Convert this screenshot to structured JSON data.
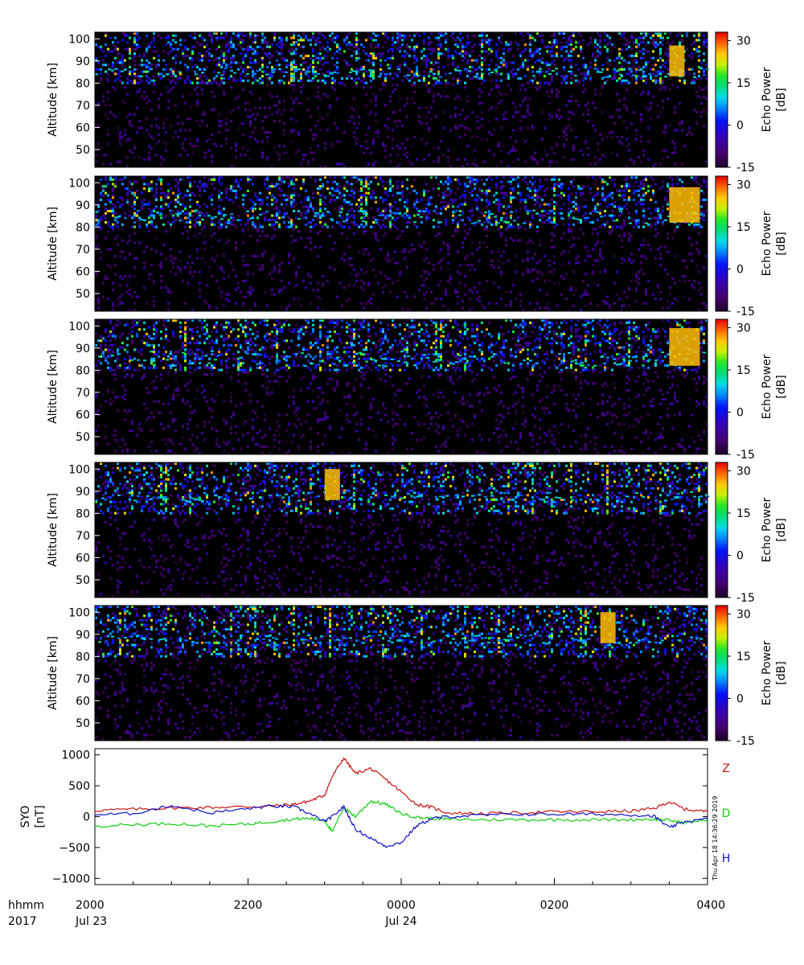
{
  "chart_data": [
    {
      "type": "heatmap",
      "panel": 1,
      "ylabel": "Altitude [km]",
      "ylim": [
        42,
        103
      ],
      "yticks": [
        "50",
        "60",
        "70",
        "80",
        "90",
        "100"
      ],
      "colorbar": {
        "label_line1": "Echo Power",
        "label_line2": "[dB]",
        "range": [
          -15,
          33
        ],
        "ticks": [
          "30",
          "15",
          "0",
          "-15"
        ]
      },
      "hours_span": [
        20,
        28
      ],
      "echo_layer_km": [
        83,
        87
      ],
      "strong_echo_hours": [
        27.5,
        27.7
      ]
    },
    {
      "type": "heatmap",
      "panel": 2,
      "ylabel": "Altitude [km]",
      "ylim": [
        42,
        103
      ],
      "yticks": [
        "50",
        "60",
        "70",
        "80",
        "90",
        "100"
      ],
      "colorbar": {
        "label_line1": "Echo Power",
        "label_line2": "[dB]",
        "range": [
          -15,
          33
        ],
        "ticks": [
          "30",
          "15",
          "0",
          "-15"
        ]
      },
      "hours_span": [
        20,
        28
      ],
      "echo_layer_km": [
        82,
        88
      ],
      "strong_echo_hours": [
        27.5,
        27.9
      ]
    },
    {
      "type": "heatmap",
      "panel": 3,
      "ylabel": "Altitude [km]",
      "ylim": [
        42,
        103
      ],
      "yticks": [
        "50",
        "60",
        "70",
        "80",
        "90",
        "100"
      ],
      "colorbar": {
        "label_line1": "Echo Power",
        "label_line2": "[dB]",
        "range": [
          -15,
          33
        ],
        "ticks": [
          "30",
          "15",
          "0",
          "-15"
        ]
      },
      "hours_span": [
        20,
        28
      ],
      "echo_layer_km": [
        82,
        89
      ],
      "strong_echo_hours": [
        27.5,
        27.9
      ]
    },
    {
      "type": "heatmap",
      "panel": 4,
      "ylabel": "Altitude [km]",
      "ylim": [
        42,
        103
      ],
      "yticks": [
        "50",
        "60",
        "70",
        "80",
        "90",
        "100"
      ],
      "colorbar": {
        "label_line1": "Echo Power",
        "label_line2": "[dB]",
        "range": [
          -15,
          33
        ],
        "ticks": [
          "30",
          "15",
          "0",
          "-15"
        ]
      },
      "hours_span": [
        20,
        28
      ],
      "echo_layer_km": [
        86,
        90
      ],
      "strong_echo_hours": [
        23.0,
        23.2
      ]
    },
    {
      "type": "heatmap",
      "panel": 5,
      "ylabel": "Altitude [km]",
      "ylim": [
        42,
        103
      ],
      "yticks": [
        "50",
        "60",
        "70",
        "80",
        "90",
        "100"
      ],
      "colorbar": {
        "label_line1": "Echo Power",
        "label_line2": "[dB]",
        "range": [
          -15,
          33
        ],
        "ticks": [
          "30",
          "15",
          "0",
          "-15"
        ]
      },
      "hours_span": [
        20,
        28
      ],
      "echo_layer_km": [
        86,
        90
      ],
      "strong_echo_hours": [
        26.6,
        26.8
      ]
    },
    {
      "type": "line",
      "station_label": "SYO",
      "unit_label": "[nT]",
      "ylim": [
        -1100,
        1100
      ],
      "yticks": [
        "1000",
        "500",
        "0",
        "-500",
        "-1000"
      ],
      "x_hours": [
        20.0,
        20.5,
        21.0,
        21.5,
        22.0,
        22.3,
        22.6,
        22.8,
        23.0,
        23.1,
        23.25,
        23.4,
        23.6,
        23.8,
        24.0,
        24.2,
        24.4,
        24.6,
        25.0,
        25.5,
        26.0,
        26.5,
        27.0,
        27.3,
        27.5,
        27.7,
        28.0
      ],
      "series": [
        {
          "name": "Z",
          "color": "#cc1111",
          "values": [
            100,
            120,
            140,
            150,
            160,
            170,
            200,
            250,
            350,
            650,
            950,
            700,
            780,
            600,
            400,
            200,
            150,
            60,
            50,
            60,
            80,
            80,
            90,
            130,
            240,
            120,
            80
          ]
        },
        {
          "name": "D",
          "color": "#11cc11",
          "values": [
            -150,
            -130,
            -110,
            -150,
            -120,
            -80,
            -40,
            -30,
            -60,
            -250,
            150,
            0,
            250,
            200,
            50,
            -10,
            -30,
            -40,
            -50,
            -50,
            -50,
            -50,
            -50,
            -40,
            -60,
            -100,
            -50
          ]
        },
        {
          "name": "H",
          "color": "#1111cc",
          "values": [
            30,
            50,
            180,
            60,
            130,
            170,
            160,
            50,
            -80,
            0,
            160,
            -200,
            -350,
            -480,
            -420,
            -150,
            -30,
            0,
            20,
            40,
            40,
            40,
            30,
            10,
            -180,
            -80,
            -40
          ]
        }
      ]
    }
  ],
  "xaxis": {
    "corner_label_line1": "hhmm",
    "corner_label_line2": "2017",
    "ticks": [
      {
        "hours": 20,
        "time": "2000",
        "date": "Jul 23"
      },
      {
        "hours": 22,
        "time": "2200",
        "date": ""
      },
      {
        "hours": 24,
        "time": "0000",
        "date": "Jul 24"
      },
      {
        "hours": 26,
        "time": "0200",
        "date": ""
      },
      {
        "hours": 28,
        "time": "0400",
        "date": ""
      }
    ]
  },
  "timestamp": "Thu Apr 18 14:36:29 2019"
}
